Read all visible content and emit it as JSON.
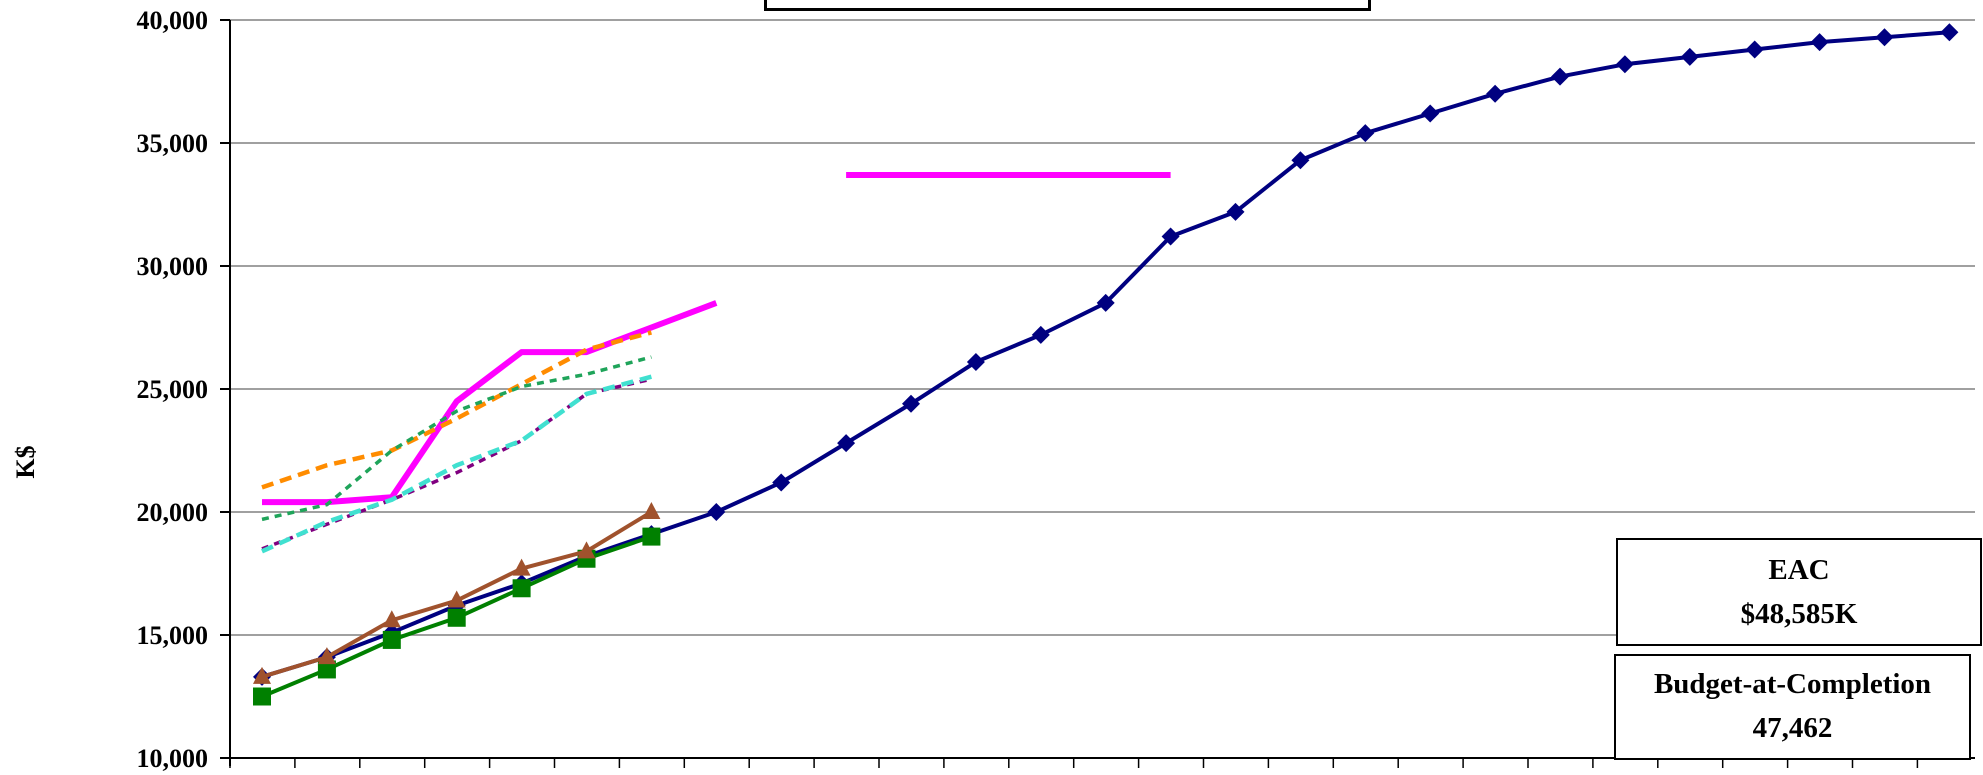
{
  "colors": {
    "bcws": "#000080",
    "bcwp": "#008000",
    "acwp": "#A0522D",
    "eac_line": "#FF00FF",
    "orange": "#FF8C00",
    "green_dash": "#1FA45A",
    "purple_dash": "#800080",
    "cyan_dash": "#40E0D0",
    "grid": "#808080"
  },
  "chart_data": {
    "type": "line",
    "ylabel": "K$",
    "ylim": [
      10000,
      40000
    ],
    "yticks": [
      "10,000",
      "15,000",
      "20,000",
      "25,000",
      "30,000",
      "35,000",
      "40,000"
    ],
    "ytick_values": [
      10000,
      15000,
      20000,
      25000,
      30000,
      35000,
      40000
    ],
    "grid": true,
    "x_count": 28,
    "series": [
      {
        "key": "bcws",
        "style": "line-diamond",
        "x": [
          1,
          2,
          3,
          4,
          5,
          6,
          7,
          8,
          9,
          10,
          11,
          12,
          13,
          14,
          15,
          16,
          17,
          18,
          19,
          20,
          21,
          22,
          23,
          24,
          25,
          26,
          27
        ],
        "values": [
          13300,
          14100,
          15100,
          16200,
          17100,
          18200,
          19100,
          20000,
          21200,
          22800,
          24400,
          26100,
          27200,
          28500,
          31200,
          32200,
          34300,
          35400,
          36200,
          37000,
          37700,
          38200,
          38500,
          38800,
          39100,
          39300,
          39500
        ]
      },
      {
        "key": "bcwp",
        "style": "line-square",
        "x": [
          1,
          2,
          3,
          4,
          5,
          6,
          7
        ],
        "values": [
          12500,
          13600,
          14800,
          15700,
          16900,
          18100,
          19000
        ]
      },
      {
        "key": "acwp",
        "style": "line-triangle",
        "x": [
          1,
          2,
          3,
          4,
          5,
          6,
          7
        ],
        "values": [
          13300,
          14100,
          15600,
          16400,
          17700,
          18400,
          20000
        ]
      },
      {
        "key": "eac_line",
        "style": "thick",
        "x": [
          1,
          2,
          3,
          4,
          5,
          6,
          7,
          8
        ],
        "values": [
          20400,
          20400,
          20600,
          24500,
          26500,
          26500,
          27500,
          28500
        ]
      },
      {
        "key": "orange",
        "style": "dash",
        "x": [
          1,
          2,
          3,
          4,
          5,
          6,
          7
        ],
        "values": [
          21000,
          21900,
          22500,
          23800,
          25200,
          26600,
          27300
        ]
      },
      {
        "key": "green_dash",
        "style": "dash-thin",
        "x": [
          1,
          2,
          3,
          4,
          5,
          6,
          7
        ],
        "values": [
          19700,
          20300,
          22500,
          24100,
          25100,
          25600,
          26300
        ]
      },
      {
        "key": "purple_dash",
        "style": "dash-thin",
        "x": [
          1,
          2,
          3,
          4,
          5,
          6,
          7
        ],
        "values": [
          18500,
          19500,
          20500,
          21600,
          22900,
          24800,
          25400
        ]
      },
      {
        "key": "cyan_dash",
        "style": "dash",
        "x": [
          1,
          2,
          3,
          4,
          5,
          6,
          7
        ],
        "values": [
          18400,
          19600,
          20500,
          21900,
          22900,
          24800,
          25500
        ]
      },
      {
        "key": "eac_line",
        "style": "thick",
        "x": [
          10,
          15
        ],
        "values": [
          33700,
          33700
        ]
      }
    ]
  },
  "eac_box": {
    "title": "EAC",
    "value": "$48,585K"
  },
  "bac_box": {
    "title": "Budget-at-Completion",
    "value": "47,462"
  }
}
